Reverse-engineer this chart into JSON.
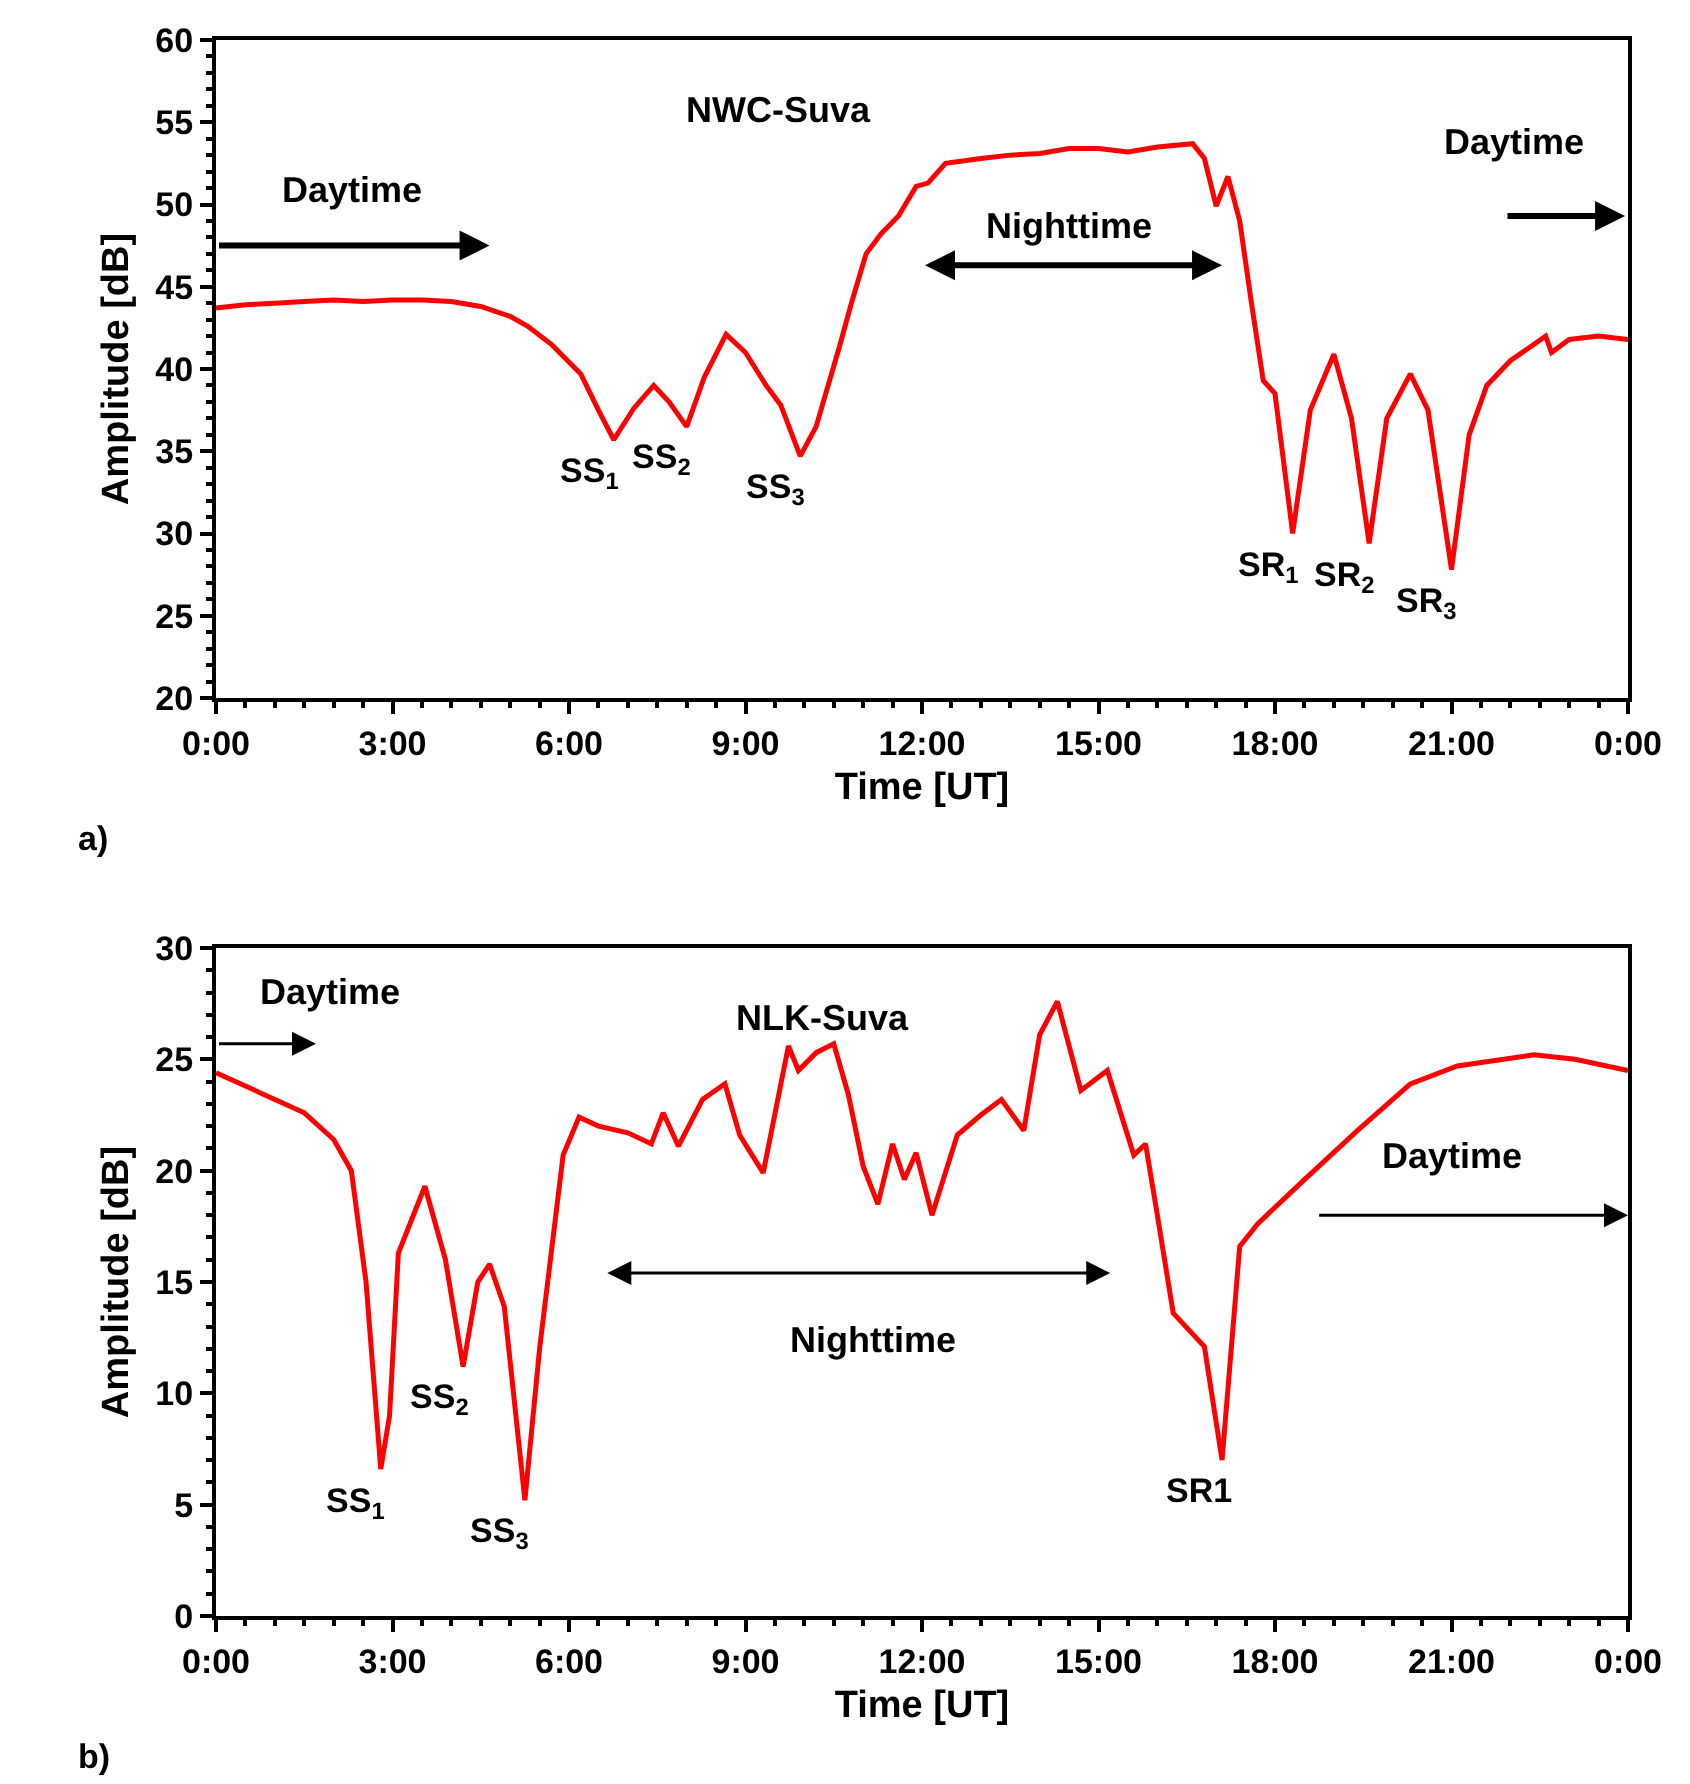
{
  "chart_data": [
    {
      "type": "line",
      "title": "NWC-Suva",
      "xlabel": "Time [UT]",
      "ylabel": "Amplitude [dB]",
      "xlim": [
        0,
        24
      ],
      "ylim": [
        20,
        60
      ],
      "xticks": [
        {
          "value": 0,
          "label": "0:00"
        },
        {
          "value": 3,
          "label": "3:00"
        },
        {
          "value": 6,
          "label": "6:00"
        },
        {
          "value": 9,
          "label": "9:00"
        },
        {
          "value": 12,
          "label": "12:00"
        },
        {
          "value": 15,
          "label": "15:00"
        },
        {
          "value": 18,
          "label": "18:00"
        },
        {
          "value": 21,
          "label": "21:00"
        },
        {
          "value": 24,
          "label": "0:00"
        }
      ],
      "yticks": [
        20,
        25,
        30,
        35,
        40,
        45,
        50,
        55,
        60
      ],
      "grid": false,
      "x": [
        0,
        0.5,
        1,
        1.5,
        2,
        2.5,
        3,
        3.5,
        4,
        4.5,
        5,
        5.3,
        5.7,
        6.2,
        6.5,
        6.76,
        7.1,
        7.44,
        7.7,
        8.0,
        8.3,
        8.67,
        9.0,
        9.35,
        9.6,
        9.93,
        10.2,
        10.6,
        10.8,
        11.05,
        11.3,
        11.6,
        11.9,
        12.1,
        12.4,
        13,
        13.5,
        14,
        14.5,
        15,
        15.5,
        16,
        16.6,
        16.8,
        17.0,
        17.2,
        17.4,
        17.6,
        17.8,
        18.0,
        18.3,
        18.6,
        19.0,
        19.3,
        19.6,
        19.9,
        20.3,
        20.6,
        21.0,
        21.3,
        21.6,
        22.0,
        22.6,
        22.7,
        23.0,
        23.5,
        24
      ],
      "series": [
        {
          "color": "#ff0000",
          "values": [
            43.7,
            43.9,
            44.0,
            44.1,
            44.2,
            44.1,
            44.2,
            44.2,
            44.1,
            43.8,
            43.2,
            42.6,
            41.5,
            39.7,
            37.5,
            35.7,
            37.6,
            39.0,
            38.0,
            36.5,
            39.5,
            42.1,
            41.0,
            39.0,
            37.8,
            34.7,
            36.5,
            41.4,
            44.0,
            47.0,
            48.2,
            49.3,
            51.1,
            51.3,
            52.5,
            52.8,
            53.0,
            53.1,
            53.4,
            53.4,
            53.2,
            53.5,
            53.7,
            52.8,
            49.9,
            51.7,
            49.0,
            44.0,
            39.3,
            38.5,
            30.0,
            37.5,
            40.9,
            37.0,
            29.4,
            37.0,
            39.7,
            37.5,
            27.8,
            36.0,
            39.0,
            40.5,
            42.0,
            41.0,
            41.8,
            42.0,
            41.8
          ]
        }
      ],
      "annotations": [
        "a)",
        "Daytime",
        "Nighttime",
        "Daytime",
        {
          "text": "SS$_{1}$",
          "x": 6.76,
          "y": 35.7
        },
        {
          "text": "SS$_{2}$",
          "x": 8.0,
          "y": 36.5
        },
        {
          "text": "SS$_{3}$",
          "x": 9.93,
          "y": 34.7
        },
        {
          "text": "SR$_{1}$",
          "x": 18.3,
          "y": 30.0
        },
        {
          "text": "SR$_{2}$",
          "x": 19.6,
          "y": 29.4
        },
        {
          "text": "SR$_{3}$",
          "x": 21.0,
          "y": 27.8
        }
      ]
    },
    {
      "type": "line",
      "title": "NLK-Suva",
      "xlabel": "Time [UT]",
      "ylabel": "Amplitude [dB]",
      "xlim": [
        0,
        24
      ],
      "ylim": [
        0,
        30
      ],
      "xticks": [
        {
          "value": 0,
          "label": "0:00"
        },
        {
          "value": 3,
          "label": "3:00"
        },
        {
          "value": 6,
          "label": "6:00"
        },
        {
          "value": 9,
          "label": "9:00"
        },
        {
          "value": 12,
          "label": "12:00"
        },
        {
          "value": 15,
          "label": "15:00"
        },
        {
          "value": 18,
          "label": "18:00"
        },
        {
          "value": 21,
          "label": "21:00"
        },
        {
          "value": 24,
          "label": "0:00"
        }
      ],
      "yticks": [
        0,
        5,
        10,
        15,
        20,
        25,
        30
      ],
      "grid": false,
      "x": [
        0,
        0.5,
        1,
        1.5,
        2,
        2.3,
        2.55,
        2.8,
        2.95,
        3.1,
        3.55,
        3.9,
        4.2,
        4.45,
        4.65,
        4.9,
        5.25,
        5.5,
        5.9,
        6.17,
        6.5,
        7.0,
        7.4,
        7.6,
        7.86,
        8.27,
        8.65,
        8.9,
        9.3,
        9.73,
        9.9,
        10.2,
        10.5,
        10.75,
        11.0,
        11.25,
        11.5,
        11.7,
        11.9,
        12.17,
        12.6,
        13.0,
        13.35,
        13.73,
        14.0,
        14.3,
        14.7,
        15.15,
        15.6,
        15.8,
        16.0,
        16.27,
        16.8,
        17.1,
        17.4,
        17.7,
        18.5,
        19.4,
        20.3,
        21.1,
        22.4,
        23.1,
        24
      ],
      "series": [
        {
          "color": "#ff0000",
          "values": [
            24.4,
            23.8,
            23.2,
            22.6,
            21.4,
            20.0,
            15.0,
            6.6,
            9.0,
            16.3,
            19.3,
            16.0,
            11.2,
            15.0,
            15.8,
            13.9,
            5.2,
            12.0,
            20.7,
            22.4,
            22.0,
            21.7,
            21.2,
            22.6,
            21.1,
            23.2,
            23.9,
            21.6,
            19.9,
            25.6,
            24.5,
            25.3,
            25.7,
            23.4,
            20.2,
            18.5,
            21.2,
            19.6,
            20.8,
            18.0,
            21.6,
            22.5,
            23.2,
            21.8,
            26.1,
            27.6,
            23.6,
            24.5,
            20.7,
            21.2,
            18.0,
            13.6,
            12.1,
            7.0,
            16.6,
            17.6,
            19.6,
            21.8,
            23.9,
            24.7,
            25.2,
            25.0,
            24.5
          ]
        }
      ],
      "annotations": [
        "b)",
        "Daytime",
        "Nighttime",
        "Daytime",
        {
          "text": "SS$_{1}$",
          "x": 2.8,
          "y": 6.6
        },
        {
          "text": "SS$_{2}$",
          "x": 4.2,
          "y": 11.2
        },
        {
          "text": "SS$_{3}$",
          "x": 5.25,
          "y": 5.2
        },
        {
          "text": "SR1",
          "x": 17.1,
          "y": 7.0
        }
      ]
    }
  ]
}
